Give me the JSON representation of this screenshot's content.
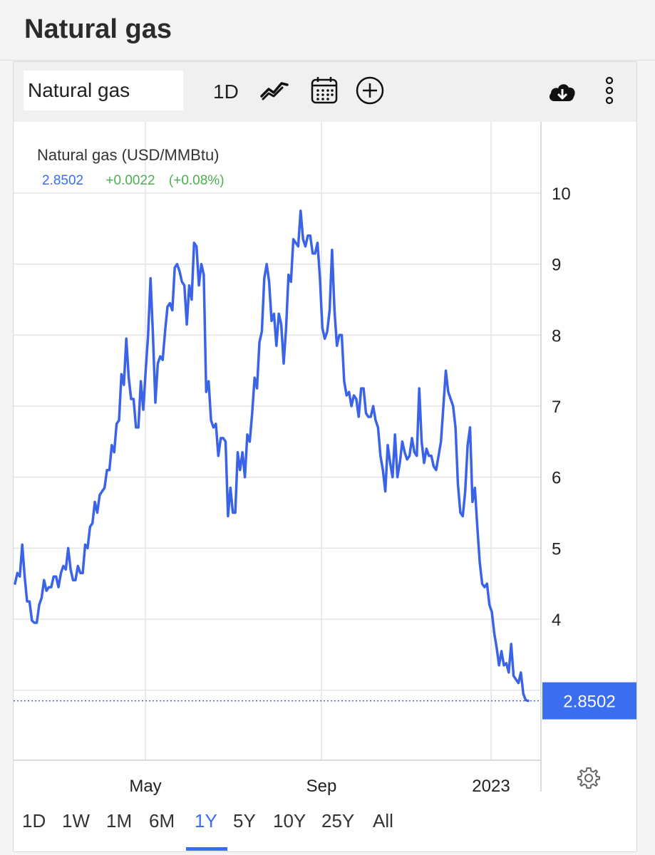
{
  "page": {
    "title": "Natural gas"
  },
  "toolbar": {
    "symbol": "Natural gas",
    "interval": "1D",
    "icons": [
      "line-chart-icon",
      "calendar-icon",
      "add-circle-icon",
      "cloud-download-icon",
      "more-vertical-icon"
    ]
  },
  "legend": {
    "title": "Natural gas (USD/MMBtu)",
    "price": "2.8502",
    "change": "+0.0022",
    "change_pct": "(+0.08%)"
  },
  "colors": {
    "line": "#3a63e8",
    "accent": "#3a6df0",
    "positive": "#4caf50",
    "grid": "#e3e3e8"
  },
  "range_tabs": [
    "1D",
    "1W",
    "1M",
    "6M",
    "1Y",
    "5Y",
    "10Y",
    "25Y",
    "All"
  ],
  "active_range": "1Y",
  "chart_data": {
    "type": "line",
    "title": "Natural gas (USD/MMBtu)",
    "xlabel": "",
    "ylabel": "",
    "x_ticks": [
      "May",
      "Sep",
      "2023"
    ],
    "y_ticks": [
      4,
      5,
      6,
      7,
      8,
      9,
      10
    ],
    "ylim": [
      2.3,
      11.0
    ],
    "grid": true,
    "current_value": "2.8502",
    "series": [
      {
        "name": "Natural gas",
        "values": [
          4.5,
          4.65,
          4.6,
          5.05,
          4.6,
          4.25,
          4.25,
          3.98,
          3.95,
          3.95,
          4.2,
          4.3,
          4.55,
          4.4,
          4.45,
          4.45,
          4.6,
          4.6,
          4.45,
          4.65,
          4.75,
          4.7,
          5.0,
          4.7,
          4.55,
          4.55,
          4.75,
          4.65,
          4.65,
          5.05,
          5.0,
          5.3,
          5.35,
          5.65,
          5.5,
          5.75,
          5.8,
          5.85,
          6.1,
          6.1,
          6.45,
          6.35,
          6.75,
          6.8,
          7.45,
          7.3,
          7.95,
          7.4,
          7.1,
          7.1,
          6.7,
          6.7,
          7.35,
          6.95,
          7.5,
          8.0,
          8.8,
          8.0,
          7.05,
          7.6,
          7.7,
          7.65,
          8.05,
          8.4,
          8.45,
          8.35,
          8.95,
          9.0,
          8.9,
          8.75,
          8.7,
          8.15,
          8.7,
          8.5,
          9.3,
          9.25,
          8.7,
          9.0,
          8.85,
          7.2,
          7.35,
          6.8,
          6.7,
          6.75,
          6.3,
          6.55,
          6.55,
          6.5,
          5.45,
          5.85,
          5.5,
          5.5,
          6.35,
          6.1,
          6.35,
          6.0,
          6.6,
          6.5,
          6.9,
          7.4,
          7.25,
          7.9,
          8.05,
          8.8,
          9.0,
          8.75,
          8.2,
          8.3,
          7.85,
          8.3,
          8.15,
          7.6,
          8.1,
          8.85,
          8.75,
          9.35,
          9.3,
          9.25,
          9.75,
          9.35,
          9.25,
          9.4,
          9.4,
          9.15,
          9.15,
          9.3,
          8.8,
          8.1,
          7.95,
          8.05,
          8.35,
          9.2,
          8.35,
          7.85,
          8.0,
          8.0,
          7.35,
          7.15,
          7.2,
          7.0,
          7.15,
          7.1,
          6.85,
          7.25,
          7.25,
          6.9,
          6.85,
          6.85,
          7.0,
          6.8,
          6.7,
          6.3,
          6.1,
          5.8,
          6.45,
          6.2,
          6.0,
          6.6,
          6.0,
          6.2,
          6.5,
          6.35,
          6.25,
          6.3,
          6.55,
          6.35,
          6.3,
          7.25,
          6.5,
          6.2,
          6.4,
          6.3,
          6.3,
          6.15,
          6.1,
          6.3,
          6.5,
          7.0,
          7.5,
          7.2,
          7.1,
          7.0,
          6.7,
          5.9,
          5.5,
          5.45,
          5.8,
          6.45,
          6.7,
          5.65,
          5.85,
          5.3,
          4.8,
          4.5,
          4.45,
          4.5,
          4.2,
          4.1,
          3.8,
          3.6,
          3.35,
          3.55,
          3.35,
          3.38,
          3.25,
          3.65,
          3.2,
          3.15,
          3.1,
          3.25,
          2.95,
          2.86,
          2.8502
        ]
      }
    ]
  }
}
